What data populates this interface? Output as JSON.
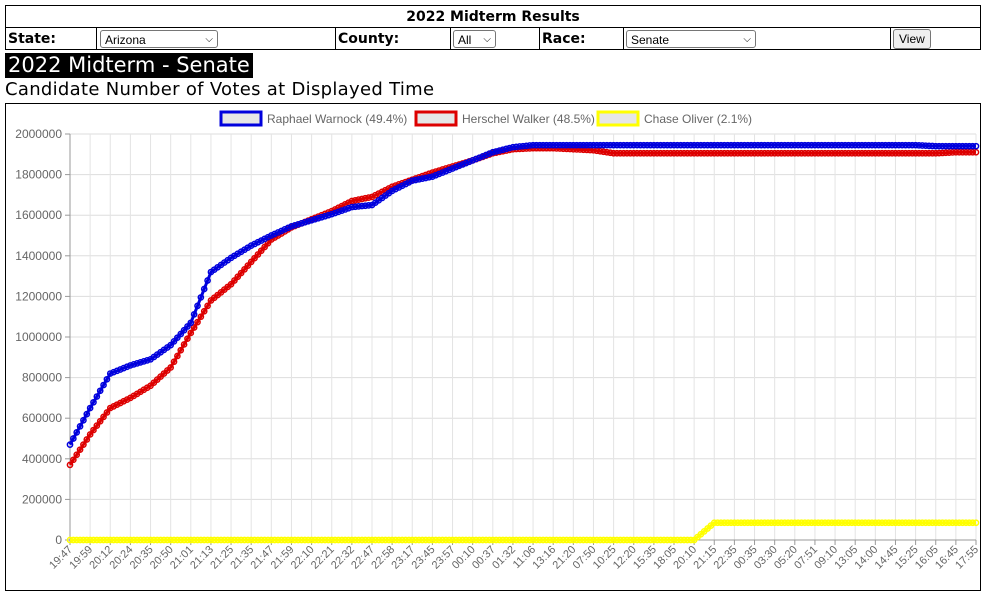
{
  "header": {
    "title": "2022 Midterm Results"
  },
  "controls": {
    "state_label": "State:",
    "state_value": "Arizona",
    "county_label": "County:",
    "county_value": "All",
    "race_label": "Race:",
    "race_value": "Senate",
    "view_label": "View"
  },
  "page": {
    "title": "2022 Midterm - Senate",
    "subtitle": "Candidate Number of Votes at Displayed Time"
  },
  "colors": {
    "warnock": "#0000dd",
    "walker": "#dd0000",
    "oliver": "#ffff00"
  },
  "chart_data": {
    "type": "line",
    "title": "",
    "ylim": [
      0,
      2000000
    ],
    "yticks": [
      0,
      200000,
      400000,
      600000,
      800000,
      1000000,
      1200000,
      1400000,
      1600000,
      1800000,
      2000000
    ],
    "x": [
      "19:47",
      "19:59",
      "20:12",
      "20:24",
      "20:35",
      "20:50",
      "21:01",
      "21:13",
      "21:25",
      "21:35",
      "21:47",
      "21:59",
      "22:10",
      "22:21",
      "22:32",
      "22:47",
      "22:58",
      "23:17",
      "23:45",
      "23:57",
      "00:10",
      "00:37",
      "01:32",
      "11:06",
      "13:16",
      "21:20",
      "07:50",
      "10:25",
      "12:20",
      "15:35",
      "18:05",
      "20:10",
      "21:15",
      "22:35",
      "00:35",
      "03:30",
      "05:20",
      "07:51",
      "09:10",
      "13:05",
      "14:00",
      "14:45",
      "15:25",
      "16:05",
      "16:45",
      "17:55"
    ],
    "legend_position": "top",
    "grid": true,
    "series": [
      {
        "name": "Raphael Warnock (49.4%)",
        "color": "#0000dd",
        "values": [
          470000,
          650000,
          820000,
          860000,
          890000,
          960000,
          1070000,
          1320000,
          1390000,
          1450000,
          1500000,
          1545000,
          1575000,
          1605000,
          1640000,
          1650000,
          1720000,
          1770000,
          1790000,
          1830000,
          1870000,
          1910000,
          1935000,
          1945000,
          1945000,
          1945000,
          1945000,
          1945000,
          1945000,
          1945000,
          1945000,
          1945000,
          1945000,
          1945000,
          1945000,
          1945000,
          1945000,
          1945000,
          1945000,
          1945000,
          1945000,
          1945000,
          1945000,
          1940000,
          1940000,
          1940000
        ]
      },
      {
        "name": "Herschel Walker (48.5%)",
        "color": "#dd0000",
        "values": [
          370000,
          520000,
          650000,
          700000,
          760000,
          850000,
          1020000,
          1180000,
          1260000,
          1370000,
          1480000,
          1540000,
          1580000,
          1620000,
          1670000,
          1690000,
          1740000,
          1775000,
          1810000,
          1840000,
          1870000,
          1905000,
          1925000,
          1930000,
          1930000,
          1925000,
          1920000,
          1905000,
          1905000,
          1905000,
          1905000,
          1905000,
          1905000,
          1905000,
          1905000,
          1905000,
          1905000,
          1905000,
          1905000,
          1905000,
          1905000,
          1905000,
          1905000,
          1905000,
          1910000,
          1910000
        ]
      },
      {
        "name": "Chase Oliver (2.1%)",
        "color": "#ffff00",
        "values": [
          0,
          0,
          0,
          0,
          0,
          0,
          0,
          0,
          0,
          0,
          0,
          0,
          0,
          0,
          0,
          0,
          0,
          0,
          0,
          0,
          0,
          0,
          0,
          0,
          0,
          0,
          0,
          0,
          0,
          0,
          0,
          0,
          85000,
          85000,
          85000,
          85000,
          85000,
          85000,
          85000,
          85000,
          85000,
          85000,
          85000,
          85000,
          85000,
          85000
        ]
      }
    ]
  }
}
